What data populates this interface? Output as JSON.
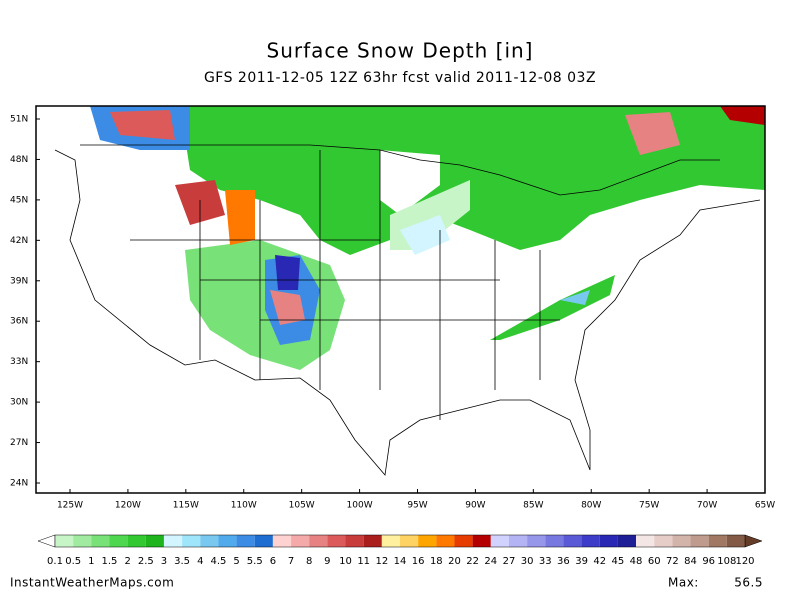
{
  "header": {
    "title": "Surface Snow Depth [in]",
    "subtitle": "GFS 2011-12-05 12Z 63hr fcst valid 2011-12-08 03Z"
  },
  "map": {
    "lat_labels": [
      "51N",
      "48N",
      "45N",
      "42N",
      "39N",
      "36N",
      "33N",
      "30N",
      "27N",
      "24N"
    ],
    "lon_labels": [
      "125W",
      "120W",
      "115W",
      "110W",
      "105W",
      "100W",
      "95W",
      "90W",
      "85W",
      "80W",
      "75W",
      "70W",
      "65W"
    ]
  },
  "colorbar": {
    "levels": [
      0.1,
      0.5,
      1,
      1.5,
      2,
      2.5,
      3,
      3.5,
      4,
      4.5,
      5,
      5.5,
      6,
      7,
      8,
      9,
      10,
      11,
      12,
      14,
      16,
      18,
      20,
      22,
      24,
      27,
      30,
      33,
      36,
      39,
      42,
      45,
      48,
      60,
      72,
      84,
      96,
      108,
      120
    ],
    "colors": [
      "#c8f5c8",
      "#a0eba0",
      "#78e178",
      "#50d750",
      "#32c832",
      "#1eb41e",
      "#d2f5ff",
      "#a0e6fa",
      "#78c8f0",
      "#50aaeb",
      "#3c8ce6",
      "#1e6ed2",
      "#ffd2d2",
      "#f5aaaa",
      "#e68282",
      "#dc5a5a",
      "#c83c3c",
      "#aa1e1e",
      "#fff0a0",
      "#ffd264",
      "#ffa500",
      "#ff7800",
      "#e63c00",
      "#b40000",
      "#d2d2ff",
      "#b4b4f5",
      "#9696eb",
      "#7878e1",
      "#5a5ad7",
      "#3c3cc8",
      "#2828b4",
      "#1e1e96",
      "#f5e6e6",
      "#e6cdc8",
      "#d2b4aa",
      "#be9b8c",
      "#a07864",
      "#825a46"
    ],
    "under_color": "#ffffff",
    "over_color": "#643c28"
  },
  "footer": {
    "site": "InstantWeatherMaps.com",
    "max_label": "Max:",
    "max_value": 56.5
  }
}
